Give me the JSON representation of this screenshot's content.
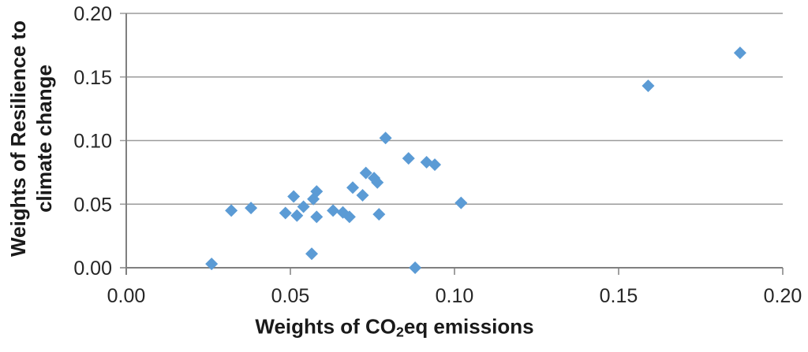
{
  "chart_data": {
    "type": "scatter",
    "title": "",
    "xlabel": "Weights of CO2eq emissions",
    "xlabel_pre": "Weights of CO",
    "xlabel_sub": "2",
    "xlabel_post": "eq emissions",
    "ylabel": "Weights of Resilience to climate change",
    "ylabel_line1": "Weights of Resilience to",
    "ylabel_line2": "climate change",
    "xlim": [
      0.0,
      0.2
    ],
    "ylim": [
      0.0,
      0.2
    ],
    "grid": "horizontal-on",
    "legend": "none",
    "marker": "diamond",
    "marker_color": "#5B9BD5",
    "gridline_color": "#9B9B9B",
    "axis_color": "#808080",
    "xticks": [
      {
        "value": 0.0,
        "label": "0.00"
      },
      {
        "value": 0.05,
        "label": "0.05"
      },
      {
        "value": 0.1,
        "label": "0.10"
      },
      {
        "value": 0.15,
        "label": "0.15"
      },
      {
        "value": 0.2,
        "label": "0.20"
      }
    ],
    "yticks": [
      {
        "value": 0.0,
        "label": "0.00"
      },
      {
        "value": 0.05,
        "label": "0.05"
      },
      {
        "value": 0.1,
        "label": "0.10"
      },
      {
        "value": 0.15,
        "label": "0.15"
      },
      {
        "value": 0.2,
        "label": "0.20"
      }
    ],
    "points": [
      [
        0.026,
        0.003
      ],
      [
        0.032,
        0.045
      ],
      [
        0.038,
        0.047
      ],
      [
        0.0485,
        0.043
      ],
      [
        0.051,
        0.056
      ],
      [
        0.052,
        0.041
      ],
      [
        0.054,
        0.048
      ],
      [
        0.0565,
        0.011
      ],
      [
        0.057,
        0.054
      ],
      [
        0.058,
        0.06
      ],
      [
        0.058,
        0.04
      ],
      [
        0.063,
        0.045
      ],
      [
        0.066,
        0.0435
      ],
      [
        0.068,
        0.04
      ],
      [
        0.069,
        0.063
      ],
      [
        0.072,
        0.057
      ],
      [
        0.073,
        0.0745
      ],
      [
        0.0755,
        0.0705
      ],
      [
        0.0765,
        0.067
      ],
      [
        0.077,
        0.042
      ],
      [
        0.079,
        0.102
      ],
      [
        0.086,
        0.086
      ],
      [
        0.088,
        0.0
      ],
      [
        0.0915,
        0.083
      ],
      [
        0.094,
        0.081
      ],
      [
        0.102,
        0.051
      ],
      [
        0.159,
        0.143
      ],
      [
        0.187,
        0.169
      ]
    ]
  }
}
